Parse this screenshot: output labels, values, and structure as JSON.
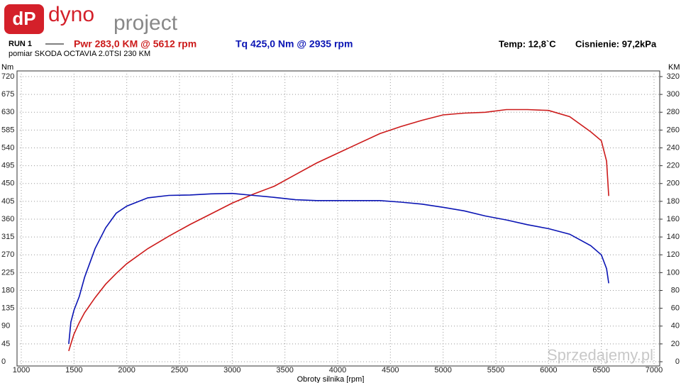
{
  "logo": {
    "mark": "dP",
    "word1": "dyno",
    "word2": "project"
  },
  "header": {
    "run": "RUN 1",
    "temp": "Temp: 12,8`C",
    "pressure": "Cisnienie: 97,2kPa",
    "description": "pomiar SKODA OCTAVIA 2.0TSI 230 KM"
  },
  "watermark": "Sprzedajemy.pl",
  "chart_data": {
    "type": "line",
    "x_label": "Obroty silnika [rpm]",
    "y_label": "Nm",
    "y2_label": "KM",
    "x": [
      1450,
      1470,
      1500,
      1550,
      1600,
      1700,
      1800,
      1900,
      2000,
      2200,
      2400,
      2600,
      2800,
      3000,
      3200,
      3400,
      3600,
      3800,
      4000,
      4200,
      4400,
      4600,
      4800,
      5000,
      5200,
      5400,
      5600,
      5800,
      6000,
      6200,
      6400,
      6500,
      6550,
      6570
    ],
    "series": [
      {
        "name": "Pwr 283,0 KM @ 5612 rpm",
        "color": "#cc1a1a",
        "axis": "y2",
        "values": [
          12,
          20,
          31,
          44,
          55,
          72,
          87,
          99,
          110,
          127,
          141,
          154,
          166,
          178,
          188,
          197,
          210,
          223,
          234,
          245,
          256,
          264,
          271,
          277,
          279,
          280,
          283,
          283,
          282,
          275,
          258,
          248,
          225,
          186
        ]
      },
      {
        "name": "Tq 425,0 Nm @ 2935 rpm",
        "color": "#0a14b4",
        "values": [
          45,
          100,
          130,
          165,
          213,
          286,
          338,
          375,
          393,
          414,
          420,
          421,
          424,
          425,
          420,
          415,
          409,
          407,
          407,
          407,
          407,
          403,
          398,
          390,
          381,
          368,
          358,
          346,
          336,
          322,
          293,
          270,
          235,
          198
        ]
      }
    ],
    "xlim": [
      1000,
      7000
    ],
    "xticks": [
      1000,
      1500,
      2000,
      2500,
      3000,
      3500,
      4000,
      4500,
      5000,
      5500,
      6000,
      6500,
      7000
    ],
    "ylim": [
      0,
      720
    ],
    "yticks": [
      0,
      45,
      90,
      135,
      180,
      225,
      270,
      315,
      360,
      405,
      450,
      495,
      540,
      585,
      630,
      675,
      720
    ],
    "y2lim": [
      0,
      320
    ],
    "y2ticks": [
      0,
      20,
      40,
      60,
      80,
      100,
      120,
      140,
      160,
      180,
      200,
      220,
      240,
      260,
      280,
      300,
      320
    ],
    "grid": true
  }
}
